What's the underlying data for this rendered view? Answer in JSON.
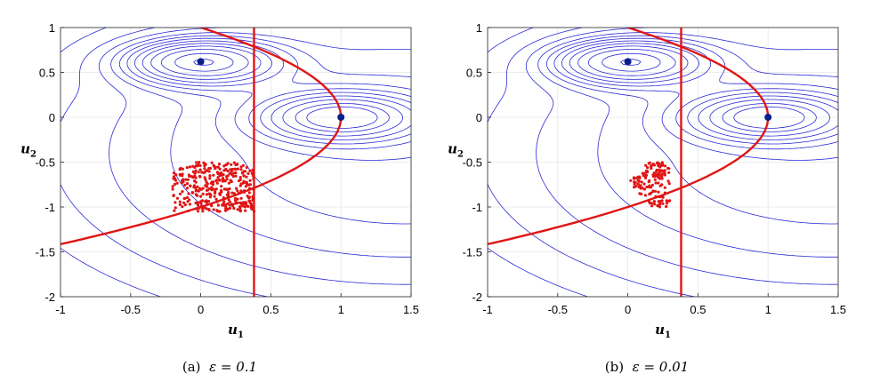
{
  "figure": {
    "captions": [
      {
        "label": "(a)",
        "epsilon": "ε = 0.1"
      },
      {
        "label": "(b)",
        "epsilon": "ε = 0.01"
      }
    ]
  },
  "chart_data": [
    {
      "type": "scatter",
      "title": "",
      "xlabel": "u1",
      "ylabel": "u2",
      "xlim": [
        -1,
        1.5
      ],
      "ylim": [
        -2,
        1
      ],
      "xticks": [
        "-1",
        "-0.5",
        "0",
        "0.5",
        "1",
        "1.5"
      ],
      "yticks": [
        "-2",
        "-1.5",
        "-1",
        "-0.5",
        "0",
        "0.5",
        "1"
      ],
      "grid": true,
      "contour_color": "#2b2bd6",
      "nullcline_color": "#e01515",
      "point_color": "#e01515",
      "equilibria_color": "#0a1e8c",
      "equilibria": [
        {
          "x": 0,
          "y": 0.62
        },
        {
          "x": 1,
          "y": 0
        }
      ],
      "vertical_line_x": 0.38,
      "parabola": "u1 = 1 - u2^2",
      "scatter_region": {
        "x": [
          -0.2,
          0.38
        ],
        "y": [
          -1.05,
          -0.5
        ]
      },
      "scatter_count": 360
    },
    {
      "type": "scatter",
      "title": "",
      "xlabel": "u1",
      "ylabel": "u2",
      "xlim": [
        -1,
        1.5
      ],
      "ylim": [
        -2,
        1
      ],
      "xticks": [
        "-1",
        "-0.5",
        "0",
        "0.5",
        "1",
        "1.5"
      ],
      "yticks": [
        "-2",
        "-1.5",
        "-1",
        "-0.5",
        "0",
        "0.5",
        "1"
      ],
      "grid": true,
      "contour_color": "#2b2bd6",
      "nullcline_color": "#e01515",
      "point_color": "#e01515",
      "equilibria_color": "#0a1e8c",
      "equilibria": [
        {
          "x": 0,
          "y": 0.62
        },
        {
          "x": 1,
          "y": 0
        }
      ],
      "vertical_line_x": 0.38,
      "parabola": "u1 = 1 - u2^2",
      "scatter_region": {
        "x": [
          0.0,
          0.33
        ],
        "y": [
          -1.0,
          -0.5
        ]
      },
      "scatter_count": 140
    }
  ]
}
